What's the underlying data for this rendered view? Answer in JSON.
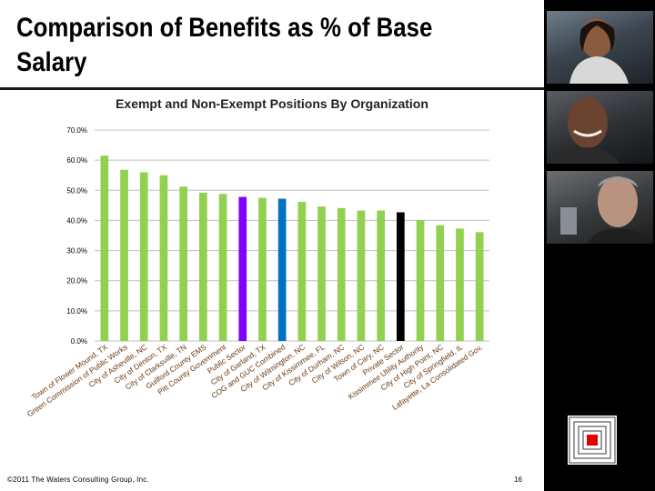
{
  "slide": {
    "title": "Comparison of  Benefits as % of Base Salary",
    "footer": "©2011 The Waters Consulting Group, Inc.",
    "page_number": "16",
    "photos": [
      "smiling-woman-photo",
      "smiling-man-photo",
      "businessman-photo"
    ],
    "logo_icon": "nested-squares-logo"
  },
  "chart_data": {
    "type": "bar",
    "title": "Exempt and Non-Exempt Positions By Organization",
    "xlabel": "",
    "ylabel": "",
    "ylim": [
      0,
      70
    ],
    "ytick_labels": [
      "0.0%",
      "10.0%",
      "20.0%",
      "30.0%",
      "40.0%",
      "50.0%",
      "60.0%",
      "70.0%"
    ],
    "grid": true,
    "legend": false,
    "categories": [
      "Town of Flower Mound, TX",
      "Green Commission of Public Works",
      "City of Asheville, NC",
      "City of Denton, TX",
      "City of Clarksville, TN",
      "Guilford County EMS",
      "Pitt County Government",
      "Public Sector",
      "City of Garland, TX",
      "COG and GUC Combined",
      "City of Wilmington, NC",
      "City of Kissimmee, FL",
      "City of Durham, NC",
      "City of Wilson, NC",
      "Town of Cary, NC",
      "Private Sector",
      "Kissimmee Utility Authority",
      "City of High Point, NC",
      "City of Springfield, IL",
      "Lafayette, La Consolidated Gov."
    ],
    "values": [
      61.5,
      56.8,
      56.0,
      55.0,
      51.2,
      49.2,
      48.8,
      47.8,
      47.5,
      47.2,
      46.2,
      44.6,
      44.1,
      43.3,
      43.3,
      42.7,
      40.1,
      38.4,
      37.3,
      36.1
    ],
    "colors": {
      "default": "#92d050",
      "highlights": {
        "Public Sector": "#7f00ff",
        "COG and GUC Combined": "#0070c0",
        "Private Sector": "#000000"
      }
    },
    "gridline_color": "#c0c0c0",
    "tick_label_color": "#6b3a10"
  }
}
